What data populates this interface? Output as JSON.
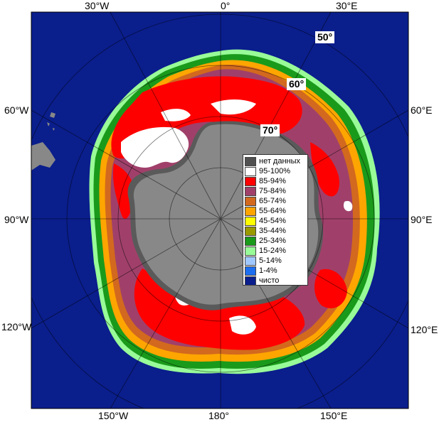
{
  "map": {
    "longitude_labels": {
      "top": [
        "30°W",
        "0°",
        "30°E"
      ],
      "left": [
        "60°W",
        "90°W",
        "120°W"
      ],
      "right": [
        "60°E",
        "90°E",
        "120°E"
      ],
      "bottom": [
        "150°W",
        "180°",
        "150°E"
      ]
    },
    "latitude_labels": [
      "50°",
      "60°",
      "70°"
    ],
    "colors": {
      "ocean": "#0a1e8c",
      "land": "#888888",
      "land_dark": "#5a5a5a",
      "outside": "#ffffff"
    }
  },
  "legend": {
    "items": [
      {
        "label": "нет данных",
        "color": "#505050"
      },
      {
        "label": "95-100%",
        "color": "#ffffff"
      },
      {
        "label": "85-94%",
        "color": "#ff0000"
      },
      {
        "label": "75-84%",
        "color": "#a0406a"
      },
      {
        "label": "65-74%",
        "color": "#d2691e"
      },
      {
        "label": "55-64%",
        "color": "#ffa500"
      },
      {
        "label": "45-54%",
        "color": "#ffff00"
      },
      {
        "label": "35-44%",
        "color": "#9a9a00"
      },
      {
        "label": "25-34%",
        "color": "#1a9a1a"
      },
      {
        "label": "15-24%",
        "color": "#98fb98"
      },
      {
        "label": "5-14%",
        "color": "#a0c8ff"
      },
      {
        "label": "1-4%",
        "color": "#1e6ef0"
      },
      {
        "label": "чисто",
        "color": "#0a1e8c"
      }
    ]
  }
}
